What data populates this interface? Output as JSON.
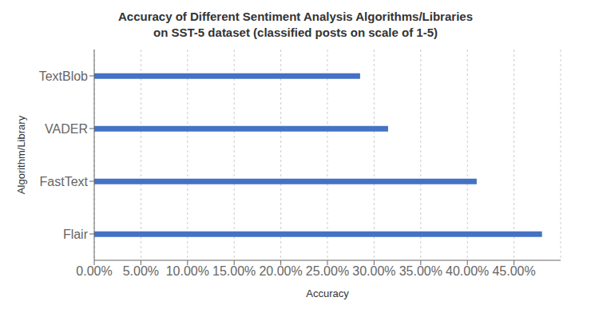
{
  "chart_data": {
    "type": "bar",
    "orientation": "horizontal",
    "title": "Accuracy of Different Sentiment Analysis Algorithms/Libraries\non SST-5 dataset (classified posts on scale of 1-5)",
    "xlabel": "Accuracy",
    "ylabel": "Algorithm/Library",
    "categories": [
      "Flair",
      "FastText",
      "VADER",
      "TextBlob"
    ],
    "values": [
      0.48,
      0.41,
      0.315,
      0.285
    ],
    "color": "#4472C4",
    "xlim": [
      0,
      0.5
    ],
    "xticks": [
      {
        "value": 0.0,
        "label": "0.00%"
      },
      {
        "value": 0.05,
        "label": "5.00%"
      },
      {
        "value": 0.1,
        "label": "10.00%"
      },
      {
        "value": 0.15,
        "label": "15.00%"
      },
      {
        "value": 0.2,
        "label": "20.00%"
      },
      {
        "value": 0.25,
        "label": "25.00%"
      },
      {
        "value": 0.3,
        "label": "30.00%"
      },
      {
        "value": 0.35,
        "label": "35.00%"
      },
      {
        "value": 0.4,
        "label": "40.00%"
      },
      {
        "value": 0.45,
        "label": "45.00%"
      }
    ],
    "grid": true
  }
}
